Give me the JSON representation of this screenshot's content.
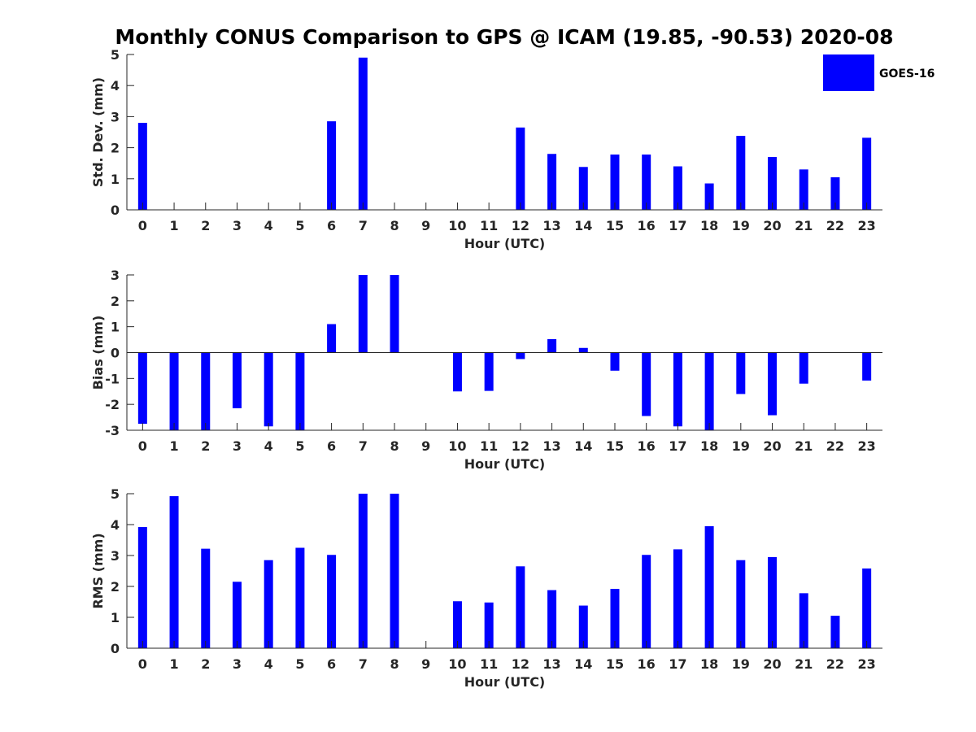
{
  "chart_data": {
    "type": "bar",
    "title": "Monthly CONUS Comparison to GPS @ ICAM (19.85, -90.53) 2020-08",
    "legend": {
      "placement": "top-right",
      "entries": [
        "GOES-16"
      ]
    },
    "colors": {
      "bar": "#0000ff"
    },
    "grid": false,
    "categories": [
      "0",
      "1",
      "2",
      "3",
      "4",
      "5",
      "6",
      "7",
      "8",
      "9",
      "10",
      "11",
      "12",
      "13",
      "14",
      "15",
      "16",
      "17",
      "18",
      "19",
      "20",
      "21",
      "22",
      "23"
    ],
    "subplots": [
      {
        "id": "std",
        "ylabel": "Std. Dev. (mm)",
        "xlabel": "Hour (UTC)",
        "ylim": [
          0,
          5
        ],
        "yticks": [
          "0",
          "1",
          "2",
          "3",
          "4",
          "5"
        ],
        "series": [
          {
            "name": "GOES-16",
            "values": [
              2.8,
              null,
              null,
              null,
              null,
              null,
              2.85,
              4.9,
              null,
              null,
              null,
              null,
              2.65,
              1.8,
              1.38,
              1.78,
              1.78,
              1.4,
              0.85,
              2.38,
              1.7,
              1.3,
              1.05,
              2.32
            ]
          }
        ]
      },
      {
        "id": "bias",
        "ylabel": "Bias (mm)",
        "xlabel": "Hour (UTC)",
        "ylim": [
          -3,
          3
        ],
        "yticks": [
          "-3",
          "-2",
          "-1",
          "0",
          "1",
          "2",
          "3"
        ],
        "series": [
          {
            "name": "GOES-16",
            "values": [
              -2.75,
              -3,
              -3,
              -2.15,
              -2.85,
              -3,
              1.1,
              3,
              3,
              null,
              -1.5,
              -1.48,
              -0.25,
              0.52,
              0.18,
              -0.7,
              -2.45,
              -2.85,
              -3,
              -1.6,
              -2.42,
              -1.2,
              null,
              -1.08
            ]
          }
        ]
      },
      {
        "id": "rms",
        "ylabel": "RMS (mm)",
        "xlabel": "Hour (UTC)",
        "ylim": [
          0,
          5
        ],
        "yticks": [
          "0",
          "1",
          "2",
          "3",
          "4",
          "5"
        ],
        "series": [
          {
            "name": "GOES-16",
            "values": [
              3.92,
              4.92,
              3.22,
              2.15,
              2.85,
              3.25,
              3.02,
              5,
              5,
              null,
              1.52,
              1.48,
              2.65,
              1.88,
              1.38,
              1.92,
              3.02,
              3.2,
              3.95,
              2.85,
              2.95,
              1.78,
              1.05,
              2.58
            ]
          }
        ]
      }
    ]
  }
}
